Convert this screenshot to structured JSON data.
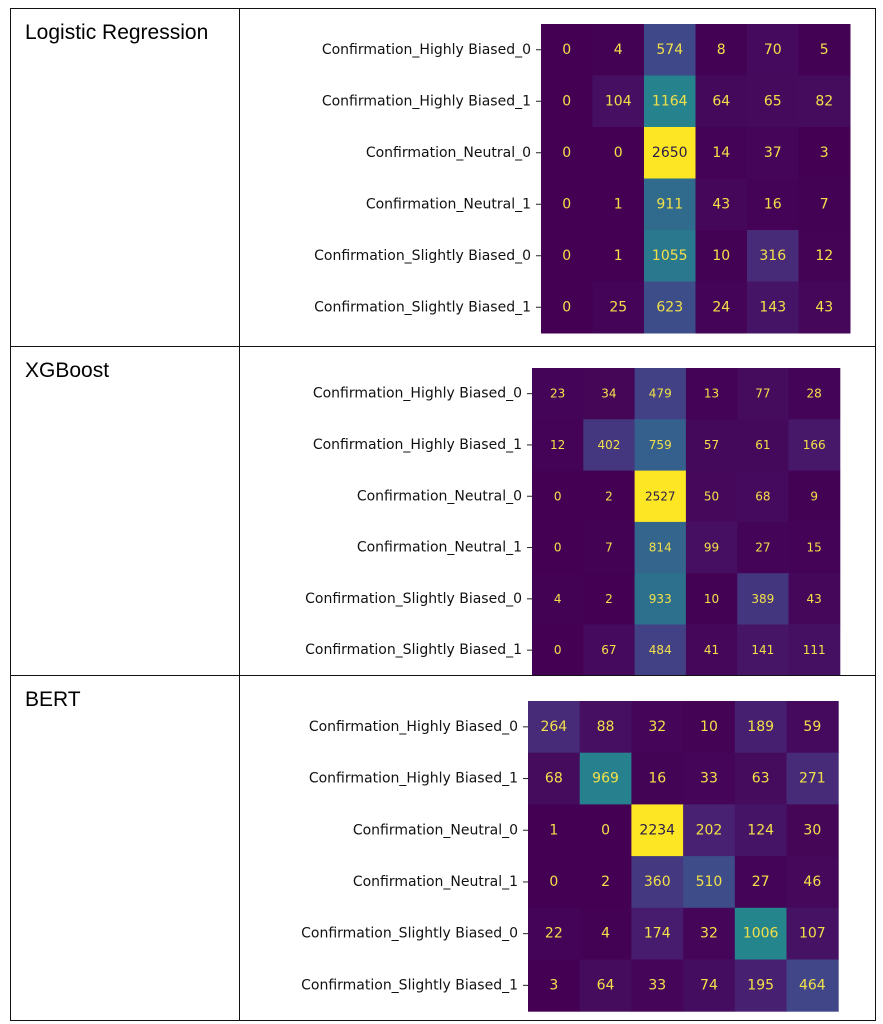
{
  "chart_data": [
    {
      "type": "heatmap",
      "model": "Logistic Regression",
      "row_labels": [
        "Confirmation_Highly Biased_0",
        "Confirmation_Highly Biased_1",
        "Confirmation_Neutral_0",
        "Confirmation_Neutral_1",
        "Confirmation_Slightly Biased_0",
        "Confirmation_Slightly Biased_1"
      ],
      "matrix": [
        [
          0,
          4,
          574,
          8,
          70,
          5
        ],
        [
          0,
          104,
          1164,
          64,
          65,
          82
        ],
        [
          0,
          0,
          2650,
          14,
          37,
          3
        ],
        [
          0,
          1,
          911,
          43,
          16,
          7
        ],
        [
          0,
          1,
          1055,
          10,
          316,
          12
        ],
        [
          0,
          25,
          623,
          24,
          143,
          43
        ]
      ],
      "colormap": "viridis"
    },
    {
      "type": "heatmap",
      "model": "XGBoost",
      "row_labels": [
        "Confirmation_Highly Biased_0",
        "Confirmation_Highly Biased_1",
        "Confirmation_Neutral_0",
        "Confirmation_Neutral_1",
        "Confirmation_Slightly Biased_0",
        "Confirmation_Slightly Biased_1"
      ],
      "matrix": [
        [
          23,
          34,
          479,
          13,
          77,
          28
        ],
        [
          12,
          402,
          759,
          57,
          61,
          166
        ],
        [
          0,
          2,
          2527,
          50,
          68,
          9
        ],
        [
          0,
          7,
          814,
          99,
          27,
          15
        ],
        [
          4,
          2,
          933,
          10,
          389,
          43
        ],
        [
          0,
          67,
          484,
          41,
          141,
          111
        ]
      ],
      "colormap": "viridis"
    },
    {
      "type": "heatmap",
      "model": "BERT",
      "row_labels": [
        "Confirmation_Highly Biased_0",
        "Confirmation_Highly Biased_1",
        "Confirmation_Neutral_0",
        "Confirmation_Neutral_1",
        "Confirmation_Slightly Biased_0",
        "Confirmation_Slightly Biased_1"
      ],
      "matrix": [
        [
          264,
          88,
          32,
          10,
          189,
          59
        ],
        [
          68,
          969,
          16,
          33,
          63,
          271
        ],
        [
          1,
          0,
          2234,
          202,
          124,
          30
        ],
        [
          0,
          2,
          360,
          510,
          27,
          46
        ],
        [
          22,
          4,
          174,
          32,
          1006,
          107
        ],
        [
          3,
          64,
          33,
          74,
          195,
          464
        ]
      ],
      "colormap": "viridis"
    }
  ]
}
